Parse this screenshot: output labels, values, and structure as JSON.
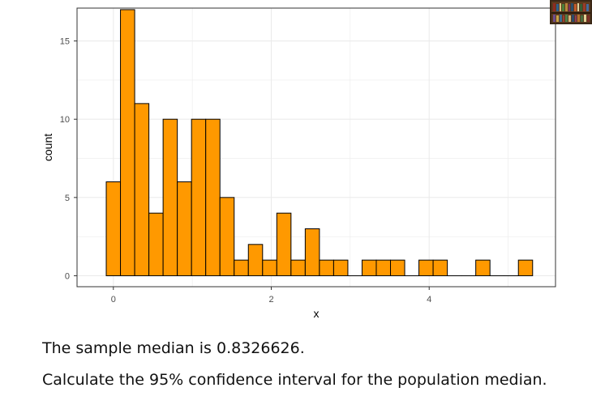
{
  "chart_data": {
    "type": "bar",
    "subtype": "histogram",
    "xlabel": "x",
    "ylabel": "count",
    "x_ticks": [
      "0",
      "2",
      "4"
    ],
    "y_ticks": [
      "0",
      "5",
      "10",
      "15"
    ],
    "xlim": [
      -0.46,
      5.6
    ],
    "ylim": [
      -0.7,
      17.1
    ],
    "bin_width": 0.18,
    "bins": [
      {
        "x": 0.0,
        "count": 6
      },
      {
        "x": 0.18,
        "count": 17
      },
      {
        "x": 0.36,
        "count": 11
      },
      {
        "x": 0.54,
        "count": 4
      },
      {
        "x": 0.72,
        "count": 10
      },
      {
        "x": 0.9,
        "count": 6
      },
      {
        "x": 1.08,
        "count": 10
      },
      {
        "x": 1.26,
        "count": 10
      },
      {
        "x": 1.44,
        "count": 5
      },
      {
        "x": 1.62,
        "count": 1
      },
      {
        "x": 1.8,
        "count": 2
      },
      {
        "x": 1.98,
        "count": 1
      },
      {
        "x": 2.16,
        "count": 4
      },
      {
        "x": 2.34,
        "count": 1
      },
      {
        "x": 2.52,
        "count": 3
      },
      {
        "x": 2.7,
        "count": 1
      },
      {
        "x": 2.88,
        "count": 1
      },
      {
        "x": 3.06,
        "count": 0
      },
      {
        "x": 3.24,
        "count": 1
      },
      {
        "x": 3.42,
        "count": 1
      },
      {
        "x": 3.6,
        "count": 1
      },
      {
        "x": 3.78,
        "count": 0
      },
      {
        "x": 3.96,
        "count": 1
      },
      {
        "x": 4.14,
        "count": 1
      },
      {
        "x": 4.32,
        "count": 0
      },
      {
        "x": 4.5,
        "count": 0
      },
      {
        "x": 4.68,
        "count": 1
      },
      {
        "x": 4.86,
        "count": 0
      },
      {
        "x": 5.04,
        "count": 0
      },
      {
        "x": 5.22,
        "count": 1
      }
    ],
    "bar_fill": "#FF9900",
    "bar_outline": "#000000",
    "panel_background": "#FFFFFF",
    "grid": true,
    "grid_color": "#EBEBEB",
    "theme": "bw"
  },
  "text": {
    "line1": "The sample median is 0.8326626.",
    "line2": "Calculate the 95% confidence interval for the population median."
  },
  "thumbnail_icon": "bookshelf-video-thumbnail"
}
